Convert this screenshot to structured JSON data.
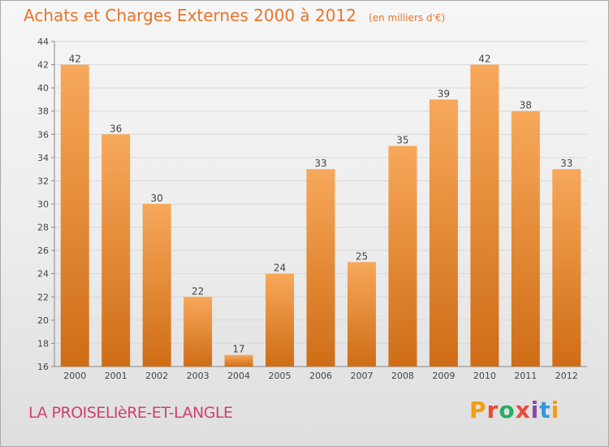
{
  "header": {
    "title": "Achats et Charges Externes 2000 à 2012",
    "subtitle": "(en milliers d'€)"
  },
  "footer": {
    "commune": "LA PROISELIèRE-ET-LANGLE",
    "logo": "Proxiti",
    "logo_colors": [
      "#f39c12",
      "#e74c3c",
      "#27ae60",
      "#e74c3c",
      "#8e44ad",
      "#3498db",
      "#f39c12"
    ]
  },
  "colors": {
    "bar_light": "#f7a85a",
    "bar_dark": "#cf6d16",
    "label": "#444444",
    "axis": "#888888",
    "grid": "#d8d8d8"
  },
  "chart_data": {
    "type": "bar",
    "categories": [
      "2000",
      "2001",
      "2002",
      "2003",
      "2004",
      "2005",
      "2006",
      "2007",
      "2008",
      "2009",
      "2010",
      "2011",
      "2012"
    ],
    "values": [
      42,
      36,
      30,
      22,
      17,
      24,
      33,
      25,
      35,
      39,
      42,
      38,
      33
    ],
    "ylim": [
      16,
      44
    ],
    "yticks": [
      16,
      18,
      20,
      22,
      24,
      26,
      28,
      30,
      32,
      34,
      36,
      38,
      40,
      42,
      44
    ],
    "grid": true,
    "data_labels": true
  }
}
